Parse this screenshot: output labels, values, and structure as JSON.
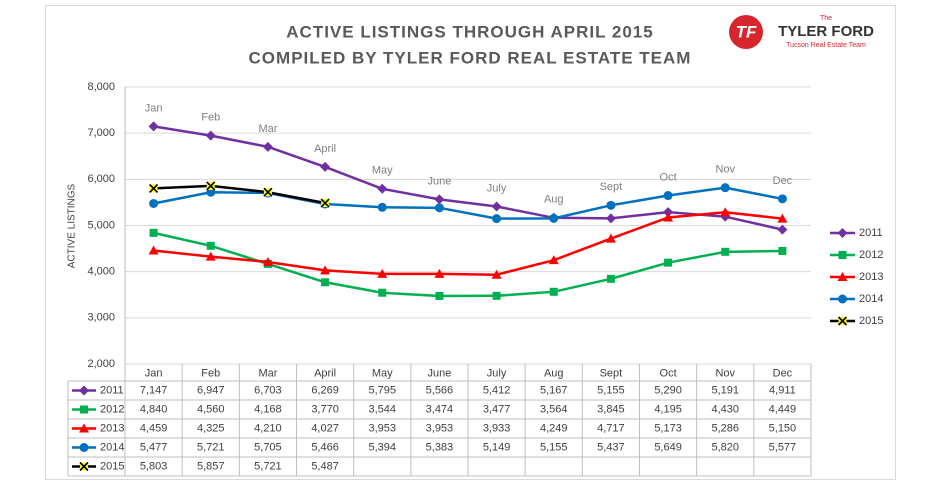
{
  "chart_data": {
    "type": "line",
    "title": "ACTIVE LISTINGS THROUGH APRIL 2015",
    "subtitle": "COMPILED BY TYLER FORD REAL ESTATE TEAM",
    "ylabel": "ACTIVE LISTINGS",
    "logo": {
      "mark": "TF",
      "top": "The",
      "name": "TYLER FORD",
      "tagline": "Tucson Real Estate Team"
    },
    "categories": [
      "Jan",
      "Feb",
      "Mar",
      "April",
      "May",
      "June",
      "July",
      "Aug",
      "Sept",
      "Oct",
      "Nov",
      "Dec"
    ],
    "ylim": [
      2000,
      8000
    ],
    "yticks": [
      {
        "value": 2000,
        "label": "2,000"
      },
      {
        "value": 3000,
        "label": "3,000"
      },
      {
        "value": 4000,
        "label": "4,000"
      },
      {
        "value": 5000,
        "label": "5,000"
      },
      {
        "value": 6000,
        "label": "6,000"
      },
      {
        "value": 7000,
        "label": "7,000"
      },
      {
        "value": 8000,
        "label": "8,000"
      }
    ],
    "grid": true,
    "legend": "right",
    "series": [
      {
        "name": "2011",
        "color": "#7030a0",
        "marker": "diamond",
        "values": [
          7147,
          6947,
          6703,
          6269,
          5795,
          5566,
          5412,
          5167,
          5155,
          5290,
          5191,
          4911
        ],
        "value_labels": [
          "7,147",
          "6,947",
          "6,703",
          "6,269",
          "5,795",
          "5,566",
          "5,412",
          "5,167",
          "5,155",
          "5,290",
          "5,191",
          "4,911"
        ]
      },
      {
        "name": "2012",
        "color": "#00b050",
        "marker": "square",
        "values": [
          4840,
          4560,
          4168,
          3770,
          3544,
          3474,
          3477,
          3564,
          3845,
          4195,
          4430,
          4449
        ],
        "value_labels": [
          "4,840",
          "4,560",
          "4,168",
          "3,770",
          "3,544",
          "3,474",
          "3,477",
          "3,564",
          "3,845",
          "4,195",
          "4,430",
          "4,449"
        ]
      },
      {
        "name": "2013",
        "color": "#ff0000",
        "marker": "triangle",
        "values": [
          4459,
          4325,
          4210,
          4027,
          3953,
          3953,
          3933,
          4249,
          4717,
          5173,
          5286,
          5150
        ],
        "value_labels": [
          "4,459",
          "4,325",
          "4,210",
          "4,027",
          "3,953",
          "3,953",
          "3,933",
          "4,249",
          "4,717",
          "5,173",
          "5,286",
          "5,150"
        ]
      },
      {
        "name": "2014",
        "color": "#0070c0",
        "marker": "circle",
        "values": [
          5477,
          5721,
          5705,
          5466,
          5394,
          5383,
          5149,
          5155,
          5437,
          5649,
          5820,
          5577
        ],
        "value_labels": [
          "5,477",
          "5,721",
          "5,705",
          "5,466",
          "5,394",
          "5,383",
          "5,149",
          "5,155",
          "5,437",
          "5,649",
          "5,820",
          "5,577"
        ]
      },
      {
        "name": "2015",
        "color": "#000000",
        "marker": "x",
        "marker_color": "#ffff00",
        "values": [
          5803,
          5857,
          5721,
          5487,
          null,
          null,
          null,
          null,
          null,
          null,
          null,
          null
        ],
        "value_labels": [
          "5,803",
          "5,857",
          "5,721",
          "5,487",
          null,
          null,
          null,
          null,
          null,
          null,
          null,
          null
        ]
      }
    ]
  }
}
